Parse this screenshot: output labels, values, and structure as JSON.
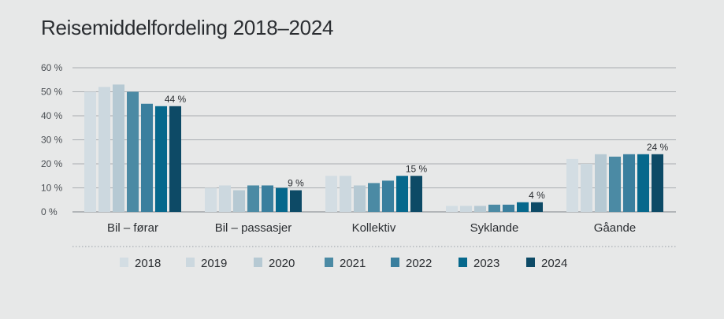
{
  "chart_data": {
    "type": "bar",
    "title": "Reisemiddelfordeling 2018–2024",
    "xlabel": "",
    "ylabel": "",
    "ylim": [
      0,
      60
    ],
    "yticks": [
      "0 %",
      "10 %",
      "20 %",
      "30 %",
      "40 %",
      "50 %",
      "60 %"
    ],
    "grid": true,
    "legend_position": "bottom",
    "categories": [
      "Bil – førar",
      "Bil – passasjer",
      "Kollektiv",
      "Syklande",
      "Gåande"
    ],
    "series": [
      {
        "name": "2018",
        "color": "#d3dde3",
        "values": [
          50,
          10,
          15,
          2.5,
          22
        ]
      },
      {
        "name": "2019",
        "color": "#ccd8df",
        "values": [
          52,
          11,
          15,
          2.5,
          20
        ]
      },
      {
        "name": "2020",
        "color": "#b6c9d3",
        "values": [
          53,
          9,
          11,
          2.5,
          24
        ]
      },
      {
        "name": "2021",
        "color": "#4b8aa4",
        "values": [
          50,
          11,
          12,
          3,
          23
        ]
      },
      {
        "name": "2022",
        "color": "#3a7f9e",
        "values": [
          45,
          11,
          13,
          3,
          24
        ]
      },
      {
        "name": "2023",
        "color": "#06688c",
        "values": [
          44,
          10,
          15,
          4,
          24
        ]
      },
      {
        "name": "2024",
        "color": "#0d4a66",
        "values": [
          44,
          9,
          15,
          4,
          24
        ]
      }
    ],
    "data_labels": [
      "44 %",
      "9 %",
      "15 %",
      "4 %",
      "24 %"
    ]
  }
}
